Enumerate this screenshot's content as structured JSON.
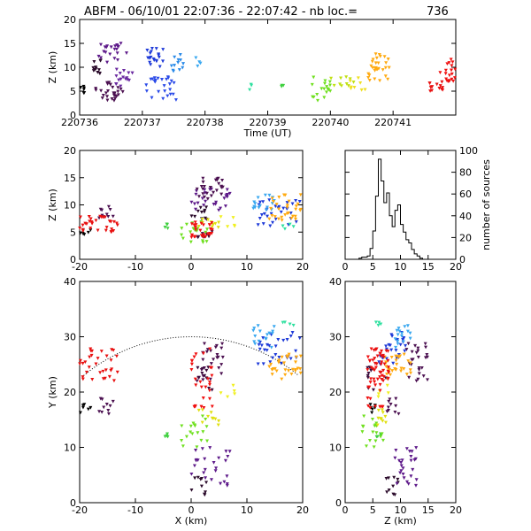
{
  "title": "ABFM - 06/10/01 22:07:36 - 22:07:42 - nb loc.=",
  "count": "736",
  "chart_data": [
    {
      "id": "time_height",
      "type": "scatter",
      "xlabel": "Time (UT)",
      "ylabel": "Z (km)",
      "xlim": [
        220736,
        220742
      ],
      "ylim": [
        0,
        20
      ],
      "xticks": [
        220736,
        220737,
        220738,
        220739,
        220740,
        220741
      ],
      "yticks": [
        0,
        5,
        10,
        15,
        20
      ],
      "color_scale": "time (black→purple→blue→cyan→green→yellow→orange→red)",
      "clusters": [
        {
          "x": [
            220736.0,
            220736.1
          ],
          "y": [
            4,
            6
          ],
          "n": 6,
          "color": "#000000"
        },
        {
          "x": [
            220736.2,
            220736.35
          ],
          "y": [
            8,
            12
          ],
          "n": 12,
          "color": "#2a0a2a"
        },
        {
          "x": [
            220736.25,
            220736.7
          ],
          "y": [
            3,
            7
          ],
          "n": 28,
          "color": "#4b1050"
        },
        {
          "x": [
            220736.3,
            220736.75
          ],
          "y": [
            11,
            15
          ],
          "n": 22,
          "color": "#5e1a8a"
        },
        {
          "x": [
            220736.55,
            220736.85
          ],
          "y": [
            6,
            10
          ],
          "n": 16,
          "color": "#6a28a0"
        },
        {
          "x": [
            220737.05,
            220737.35
          ],
          "y": [
            10,
            14
          ],
          "n": 20,
          "color": "#1e3ad8"
        },
        {
          "x": [
            220737.05,
            220737.55
          ],
          "y": [
            3,
            8
          ],
          "n": 26,
          "color": "#2a4ae8"
        },
        {
          "x": [
            220737.45,
            220737.7
          ],
          "y": [
            9,
            13
          ],
          "n": 12,
          "color": "#2a8ae8"
        },
        {
          "x": [
            220737.85,
            220737.95
          ],
          "y": [
            10,
            12
          ],
          "n": 4,
          "color": "#3aa8f0"
        },
        {
          "x": [
            220738.7,
            220738.75
          ],
          "y": [
            5,
            6.5
          ],
          "n": 3,
          "color": "#30e0a0"
        },
        {
          "x": [
            220739.2,
            220739.25
          ],
          "y": [
            5.5,
            6.5
          ],
          "n": 3,
          "color": "#40d040"
        },
        {
          "x": [
            220739.7,
            220740.0
          ],
          "y": [
            3,
            8
          ],
          "n": 18,
          "color": "#70e020"
        },
        {
          "x": [
            220740.0,
            220740.4
          ],
          "y": [
            6,
            8
          ],
          "n": 10,
          "color": "#c0e010"
        },
        {
          "x": [
            220740.3,
            220740.6
          ],
          "y": [
            5,
            8
          ],
          "n": 8,
          "color": "#f0e020"
        },
        {
          "x": [
            220740.6,
            220740.95
          ],
          "y": [
            7,
            13
          ],
          "n": 30,
          "color": "#ffaa10"
        },
        {
          "x": [
            220741.55,
            220741.8
          ],
          "y": [
            5,
            7
          ],
          "n": 14,
          "color": "#e81010"
        },
        {
          "x": [
            220741.75,
            220742.0
          ],
          "y": [
            7,
            12
          ],
          "n": 20,
          "color": "#f01010"
        }
      ]
    },
    {
      "id": "x_height",
      "type": "scatter",
      "xlabel": "",
      "ylabel": "Z (km)",
      "xlim": [
        -20,
        20
      ],
      "ylim": [
        0,
        20
      ],
      "xticks": [
        -20,
        -10,
        0,
        10,
        20
      ],
      "yticks": [
        0,
        5,
        10,
        15,
        20
      ]
    },
    {
      "id": "height_histogram",
      "type": "bar",
      "xlabel": "",
      "ylabel": "number of sources",
      "xlim": [
        0,
        20
      ],
      "ylim": [
        0,
        100
      ],
      "xticks": [
        0,
        5,
        10,
        15,
        20
      ],
      "yticks": [
        0,
        20,
        40,
        60,
        80,
        100
      ],
      "bin_width": 0.5,
      "bins_start": 0,
      "values": [
        0,
        0,
        0,
        0,
        0,
        1,
        2,
        2,
        3,
        10,
        26,
        58,
        92,
        72,
        52,
        61,
        40,
        30,
        45,
        50,
        32,
        25,
        18,
        15,
        9,
        5,
        3,
        1,
        0,
        0,
        0,
        0,
        0,
        0,
        0,
        0,
        0,
        0,
        0,
        0
      ]
    },
    {
      "id": "plan_view",
      "type": "scatter",
      "xlabel": "X (km)",
      "ylabel": "Y (km)",
      "xlim": [
        -20,
        20
      ],
      "ylim": [
        0,
        40
      ],
      "xticks": [
        -20,
        -10,
        0,
        10,
        20
      ],
      "yticks": [
        0,
        10,
        20,
        30,
        40
      ],
      "arc": {
        "description": "dotted range ring",
        "radius_km": 30
      }
    },
    {
      "id": "z_y",
      "type": "scatter",
      "xlabel": "Z (km)",
      "ylabel": "",
      "xlim": [
        0,
        20
      ],
      "ylim": [
        0,
        40
      ],
      "xticks": [
        0,
        5,
        10,
        15,
        20
      ],
      "yticks": [
        0,
        10,
        20,
        30,
        40
      ]
    }
  ],
  "sources": [
    {
      "x": [
        -20,
        -18
      ],
      "y": [
        16,
        18
      ],
      "z": [
        4.5,
        5.5
      ],
      "n": 6,
      "color": "#000000"
    },
    {
      "x": [
        0,
        3
      ],
      "y": [
        1,
        5
      ],
      "z": [
        7,
        10
      ],
      "n": 10,
      "color": "#2a0a2a"
    },
    {
      "x": [
        -17,
        -14
      ],
      "y": [
        16,
        19
      ],
      "z": [
        7,
        10
      ],
      "n": 10,
      "color": "#4b1050"
    },
    {
      "x": [
        0,
        7
      ],
      "y": [
        3,
        10
      ],
      "z": [
        8,
        13
      ],
      "n": 26,
      "color": "#5e1a8a"
    },
    {
      "x": [
        1,
        6
      ],
      "y": [
        22,
        30
      ],
      "z": [
        11,
        15
      ],
      "n": 26,
      "color": "#4b1050"
    },
    {
      "x": [
        1,
        4
      ],
      "y": [
        20,
        25
      ],
      "z": [
        4,
        8
      ],
      "n": 10,
      "color": "#3a0a3a"
    },
    {
      "x": [
        12,
        20
      ],
      "y": [
        25,
        31
      ],
      "z": [
        6,
        11
      ],
      "n": 30,
      "color": "#1e3ad8"
    },
    {
      "x": [
        11,
        15
      ],
      "y": [
        28,
        32
      ],
      "z": [
        9,
        12
      ],
      "n": 16,
      "color": "#3aa8f0"
    },
    {
      "x": [
        16,
        19
      ],
      "y": [
        32,
        33
      ],
      "z": [
        5.5,
        6.5
      ],
      "n": 4,
      "color": "#30e0a0"
    },
    {
      "x": [
        -5,
        -4
      ],
      "y": [
        11.5,
        12.5
      ],
      "z": [
        5.5,
        6.5
      ],
      "n": 4,
      "color": "#40d040"
    },
    {
      "x": [
        -2,
        3
      ],
      "y": [
        10,
        16
      ],
      "z": [
        3,
        7
      ],
      "n": 18,
      "color": "#70e020"
    },
    {
      "x": [
        1,
        6
      ],
      "y": [
        13,
        17
      ],
      "z": [
        5,
        8
      ],
      "n": 10,
      "color": "#e0e010"
    },
    {
      "x": [
        5,
        8
      ],
      "y": [
        18,
        23
      ],
      "z": [
        6,
        8
      ],
      "n": 5,
      "color": "#f0f020"
    },
    {
      "x": [
        14,
        20
      ],
      "y": [
        22,
        27
      ],
      "z": [
        7,
        12
      ],
      "n": 30,
      "color": "#ffaa10"
    },
    {
      "x": [
        -20,
        -13
      ],
      "y": [
        22,
        28
      ],
      "z": [
        5,
        8
      ],
      "n": 32,
      "color": "#e81010"
    },
    {
      "x": [
        0,
        4
      ],
      "y": [
        17,
        28
      ],
      "z": [
        4,
        7
      ],
      "n": 28,
      "color": "#f01010"
    }
  ]
}
